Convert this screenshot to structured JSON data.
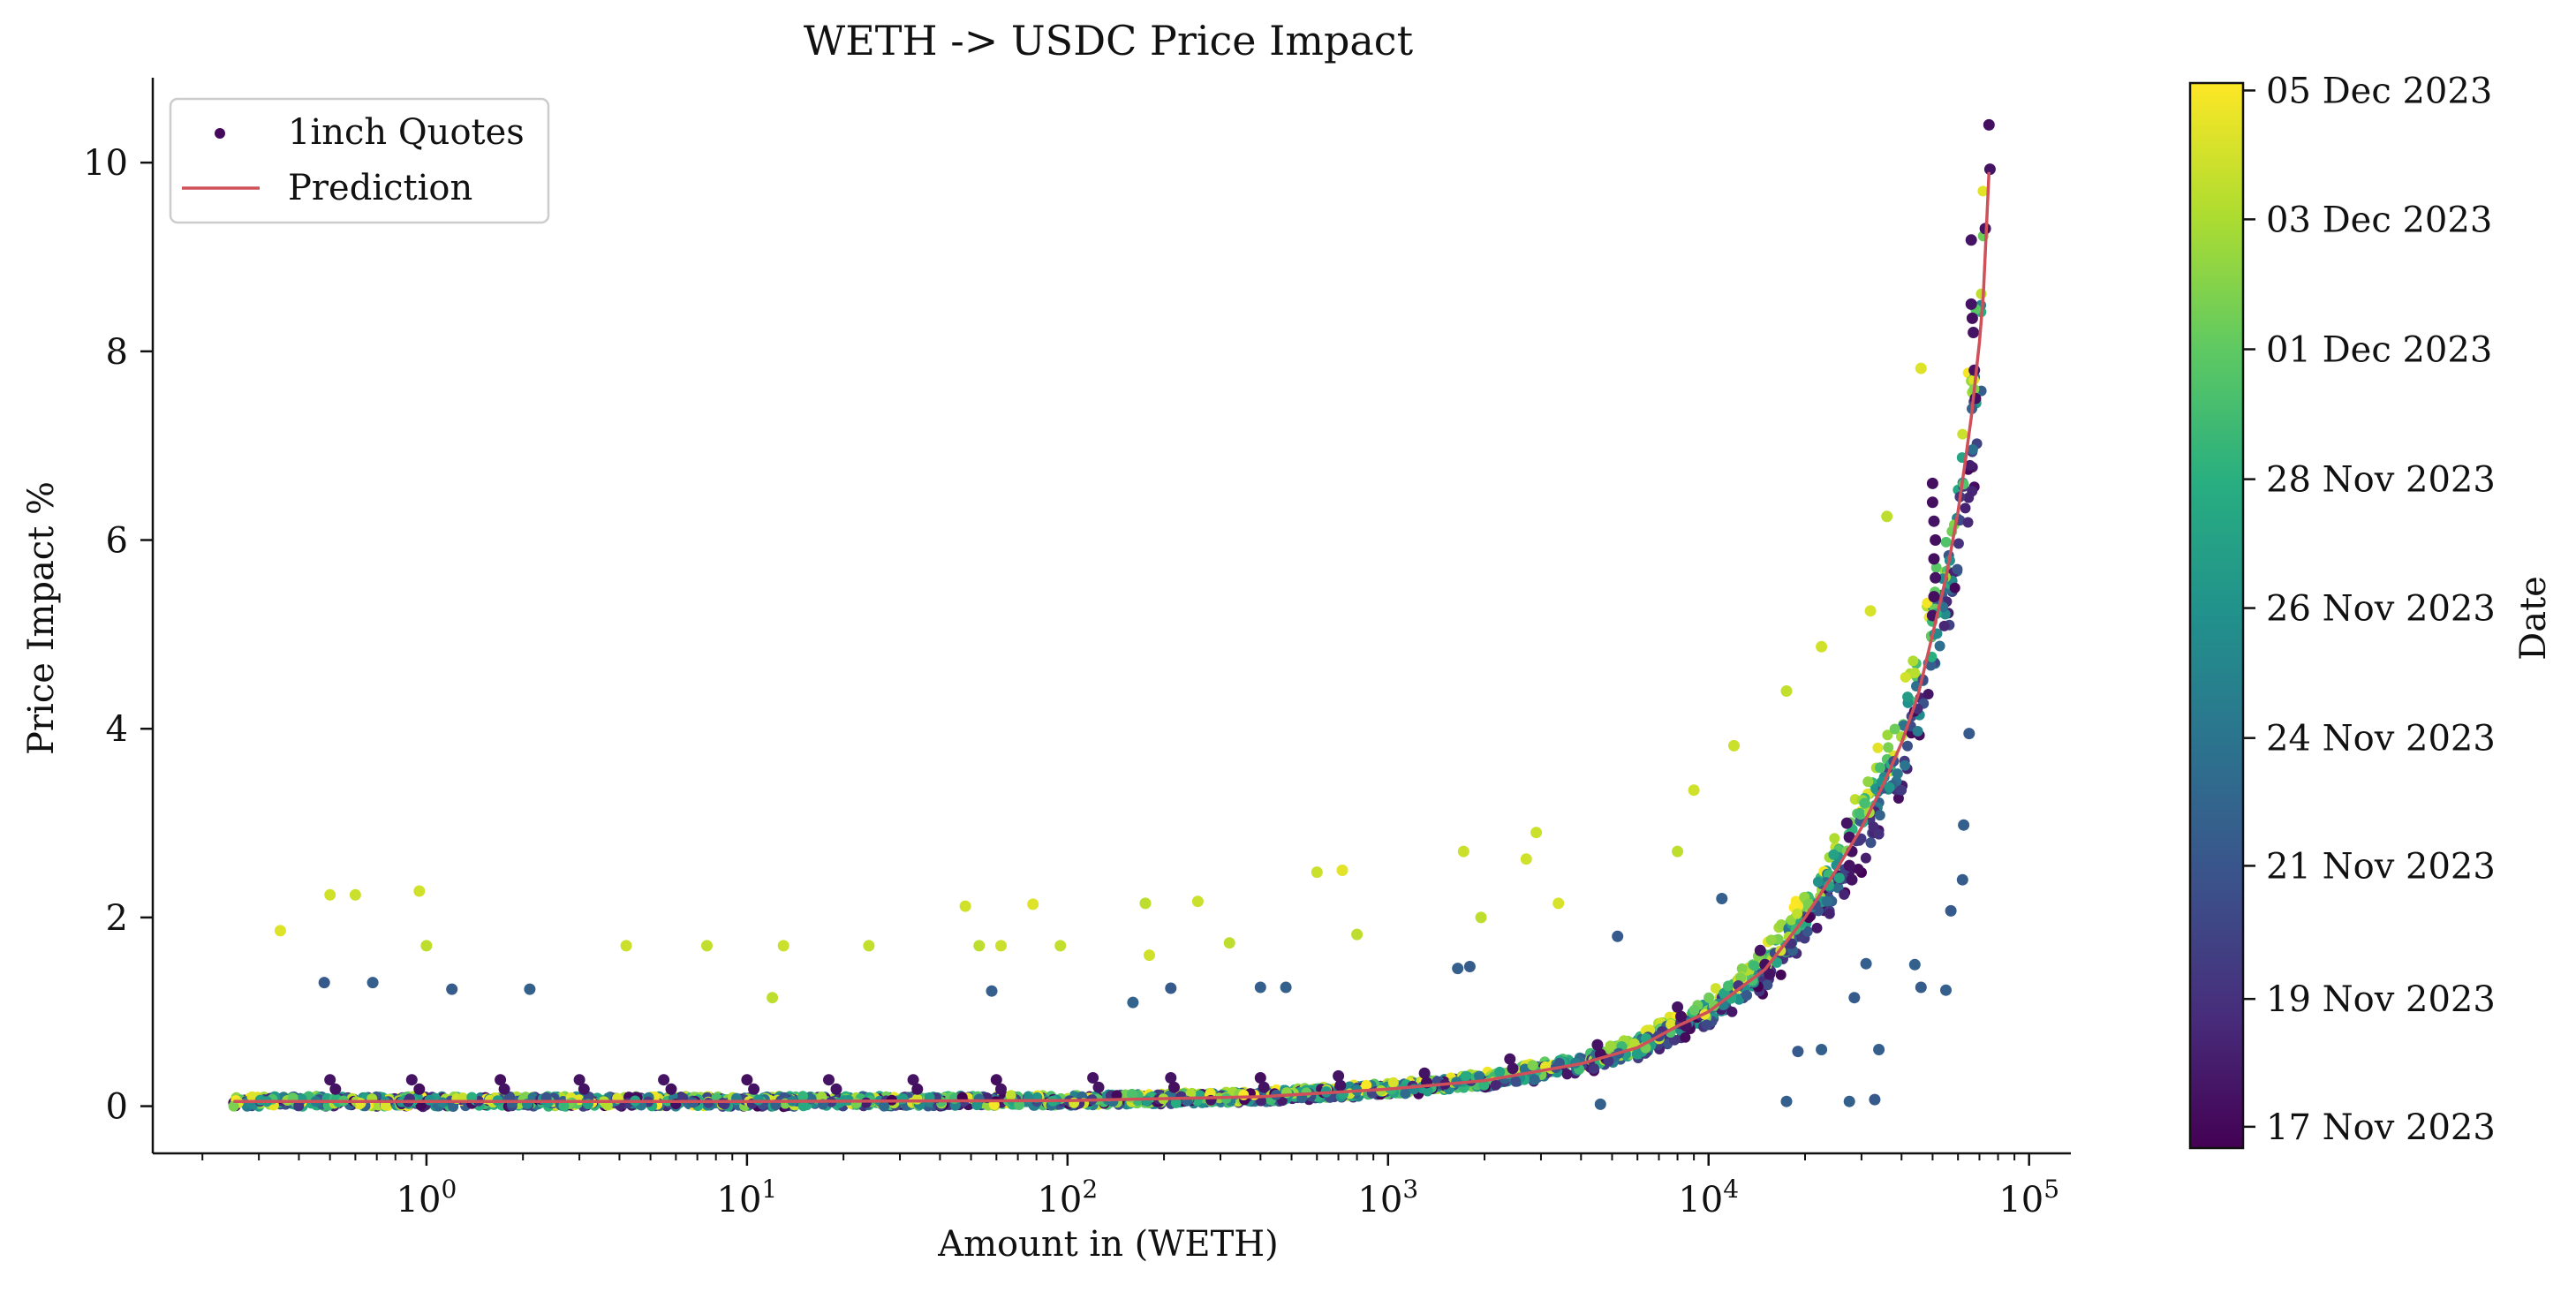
{
  "chart_data": {
    "type": "scatter",
    "title": "WETH -> USDC Price Impact",
    "xlabel": "Amount in (WETH)",
    "ylabel": "Price Impact %",
    "x_scale": "log",
    "xlim": [
      0.14,
      135000
    ],
    "ylim": [
      -0.5,
      10.9
    ],
    "x_ticks": [
      {
        "value": 1,
        "base": "10",
        "exp": "0"
      },
      {
        "value": 10,
        "base": "10",
        "exp": "1"
      },
      {
        "value": 100,
        "base": "10",
        "exp": "2"
      },
      {
        "value": 1000,
        "base": "10",
        "exp": "3"
      },
      {
        "value": 10000,
        "base": "10",
        "exp": "4"
      },
      {
        "value": 100000,
        "base": "10",
        "exp": "5"
      }
    ],
    "y_ticks": [
      0,
      2,
      4,
      6,
      8,
      10
    ],
    "grid": false,
    "legend": {
      "position": "top-left",
      "entries": [
        {
          "label": "1inch Quotes",
          "kind": "marker",
          "color": "#46085c"
        },
        {
          "label": "Prediction",
          "kind": "line",
          "color": "#d0505a"
        }
      ]
    },
    "colorbar": {
      "label": "Date",
      "colormap": "viridis",
      "range": [
        "17 Nov 2023",
        "05 Dec 2023"
      ],
      "ticks": [
        {
          "label": "17 Nov 2023",
          "position": 0.02
        },
        {
          "label": "19 Nov 2023",
          "position": 0.14
        },
        {
          "label": "21 Nov 2023",
          "position": 0.265
        },
        {
          "label": "24 Nov 2023",
          "position": 0.385
        },
        {
          "label": "26 Nov 2023",
          "position": 0.507
        },
        {
          "label": "28 Nov 2023",
          "position": 0.628
        },
        {
          "label": "01 Dec 2023",
          "position": 0.75
        },
        {
          "label": "03 Dec 2023",
          "position": 0.872
        },
        {
          "label": "05 Dec 2023",
          "position": 0.993
        }
      ]
    },
    "series": [
      {
        "name": "Prediction",
        "type": "line",
        "color": "#d0505a",
        "points": [
          [
            0.25,
            0.05
          ],
          [
            1,
            0.05
          ],
          [
            10,
            0.05
          ],
          [
            100,
            0.06
          ],
          [
            400,
            0.1
          ],
          [
            500,
            0.12
          ],
          [
            1000,
            0.18
          ],
          [
            2000,
            0.27
          ],
          [
            4000,
            0.45
          ],
          [
            6000,
            0.62
          ],
          [
            8000,
            0.85
          ],
          [
            10000,
            1.0
          ],
          [
            15000,
            1.45
          ],
          [
            20000,
            2.0
          ],
          [
            25000,
            2.5
          ],
          [
            30000,
            2.95
          ],
          [
            35000,
            3.4
          ],
          [
            40000,
            3.85
          ],
          [
            45000,
            4.35
          ],
          [
            50000,
            5.0
          ],
          [
            55000,
            5.6
          ],
          [
            60000,
            6.3
          ],
          [
            63000,
            6.8
          ],
          [
            66000,
            7.3
          ],
          [
            70000,
            8.1
          ],
          [
            72000,
            8.6
          ],
          [
            75000,
            9.9
          ]
        ]
      },
      {
        "name": "1inch Quotes",
        "type": "scatter",
        "color_by": "date",
        "colormap": "viridis",
        "points": [
          [
            0.35,
            1.86,
            0.95
          ],
          [
            0.5,
            2.24,
            0.93
          ],
          [
            0.6,
            2.24,
            0.92
          ],
          [
            0.95,
            2.28,
            0.93
          ],
          [
            1.0,
            1.7,
            0.9
          ],
          [
            4.2,
            1.7,
            0.92
          ],
          [
            7.5,
            1.7,
            0.91
          ],
          [
            12,
            1.15,
            0.9
          ],
          [
            13,
            1.7,
            0.92
          ],
          [
            24,
            1.7,
            0.91
          ],
          [
            48,
            2.12,
            0.93
          ],
          [
            53,
            1.7,
            0.9
          ],
          [
            62,
            1.7,
            0.92
          ],
          [
            78,
            2.14,
            0.95
          ],
          [
            95,
            1.7,
            0.91
          ],
          [
            175,
            2.15,
            0.9
          ],
          [
            180,
            1.6,
            0.93
          ],
          [
            255,
            2.17,
            0.92
          ],
          [
            320,
            1.73,
            0.9
          ],
          [
            600,
            2.48,
            0.92
          ],
          [
            720,
            2.5,
            0.96
          ],
          [
            800,
            1.82,
            0.9
          ],
          [
            1720,
            2.7,
            0.92
          ],
          [
            1950,
            2.0,
            0.9
          ],
          [
            2700,
            2.62,
            0.93
          ],
          [
            2900,
            2.9,
            0.92
          ],
          [
            3400,
            2.15,
            0.94
          ],
          [
            8000,
            2.7,
            0.9
          ],
          [
            9000,
            3.35,
            0.93
          ],
          [
            12000,
            3.82,
            0.92
          ],
          [
            17500,
            4.4,
            0.91
          ],
          [
            22500,
            4.87,
            0.93
          ],
          [
            32000,
            5.25,
            0.94
          ],
          [
            36000,
            6.25,
            0.9
          ],
          [
            46000,
            7.82,
            0.95
          ],
          [
            0.48,
            1.31,
            0.28
          ],
          [
            0.68,
            1.31,
            0.3
          ],
          [
            1.2,
            1.24,
            0.29
          ],
          [
            2.1,
            1.24,
            0.31
          ],
          [
            58,
            1.22,
            0.3
          ],
          [
            160,
            1.1,
            0.32
          ],
          [
            210,
            1.25,
            0.28
          ],
          [
            400,
            1.26,
            0.3
          ],
          [
            480,
            1.26,
            0.31
          ],
          [
            1650,
            1.46,
            0.3
          ],
          [
            1800,
            1.48,
            0.29
          ],
          [
            5200,
            1.8,
            0.28
          ],
          [
            11000,
            2.2,
            0.3
          ],
          [
            19000,
            0.58,
            0.28
          ],
          [
            22500,
            0.6,
            0.3
          ],
          [
            27500,
            0.05,
            0.31
          ],
          [
            28500,
            1.15,
            0.29
          ],
          [
            31000,
            1.51,
            0.3
          ],
          [
            33000,
            0.07,
            0.28
          ],
          [
            34000,
            0.6,
            0.3
          ],
          [
            44000,
            1.5,
            0.31
          ],
          [
            46000,
            1.26,
            0.29
          ],
          [
            55000,
            1.23,
            0.3
          ],
          [
            57000,
            2.07,
            0.28
          ],
          [
            62000,
            2.4,
            0.29
          ],
          [
            62500,
            2.98,
            0.3
          ],
          [
            65000,
            3.95,
            0.28
          ],
          [
            4600,
            0.02,
            0.31
          ],
          [
            17500,
            0.05,
            0.3
          ],
          [
            50000,
            6.6,
            0.04
          ],
          [
            50000,
            6.4,
            0.04
          ],
          [
            50500,
            6.2,
            0.05
          ],
          [
            51000,
            6.0,
            0.04
          ],
          [
            50500,
            5.8,
            0.04
          ],
          [
            51000,
            5.6,
            0.05
          ],
          [
            50500,
            5.4,
            0.04
          ],
          [
            50000,
            5.2,
            0.05
          ],
          [
            66000,
            8.5,
            0.05
          ],
          [
            66500,
            8.35,
            0.04
          ],
          [
            67000,
            8.2,
            0.05
          ],
          [
            67500,
            7.8,
            0.05
          ],
          [
            68000,
            7.5,
            0.04
          ],
          [
            66000,
            9.18,
            0.05
          ],
          [
            75000,
            10.4,
            0.04
          ],
          [
            75500,
            9.93,
            0.05
          ],
          [
            73000,
            9.3,
            0.05
          ],
          [
            27000,
            3.0,
            0.05
          ],
          [
            27500,
            2.85,
            0.05
          ],
          [
            28000,
            2.7,
            0.04
          ],
          [
            27500,
            2.55,
            0.05
          ],
          [
            28000,
            2.4,
            0.05
          ],
          [
            14500,
            1.65,
            0.05
          ],
          [
            15000,
            1.5,
            0.04
          ],
          [
            15500,
            1.4,
            0.05
          ],
          [
            8000,
            1.05,
            0.05
          ],
          [
            8200,
            0.95,
            0.04
          ],
          [
            8500,
            0.85,
            0.05
          ],
          [
            4500,
            0.65,
            0.05
          ],
          [
            4600,
            0.55,
            0.04
          ],
          [
            2400,
            0.5,
            0.05
          ],
          [
            2450,
            0.4,
            0.05
          ],
          [
            1300,
            0.35,
            0.05
          ],
          [
            1320,
            0.25,
            0.04
          ],
          [
            700,
            0.32,
            0.05
          ],
          [
            710,
            0.22,
            0.05
          ],
          [
            400,
            0.3,
            0.04
          ],
          [
            410,
            0.2,
            0.05
          ],
          [
            210,
            0.3,
            0.05
          ],
          [
            215,
            0.2,
            0.04
          ],
          [
            120,
            0.3,
            0.05
          ],
          [
            125,
            0.2,
            0.05
          ],
          [
            60,
            0.28,
            0.04
          ],
          [
            62,
            0.18,
            0.05
          ],
          [
            33,
            0.28,
            0.05
          ],
          [
            34,
            0.18,
            0.04
          ],
          [
            18,
            0.28,
            0.05
          ],
          [
            19,
            0.18,
            0.05
          ],
          [
            10,
            0.28,
            0.04
          ],
          [
            10.5,
            0.18,
            0.05
          ],
          [
            5.5,
            0.28,
            0.05
          ],
          [
            5.8,
            0.18,
            0.04
          ],
          [
            3,
            0.28,
            0.05
          ],
          [
            3.1,
            0.18,
            0.05
          ],
          [
            1.7,
            0.28,
            0.04
          ],
          [
            1.75,
            0.18,
            0.05
          ],
          [
            0.9,
            0.28,
            0.05
          ],
          [
            0.95,
            0.18,
            0.04
          ],
          [
            0.5,
            0.28,
            0.05
          ],
          [
            0.52,
            0.18,
            0.05
          ]
        ]
      }
    ]
  }
}
